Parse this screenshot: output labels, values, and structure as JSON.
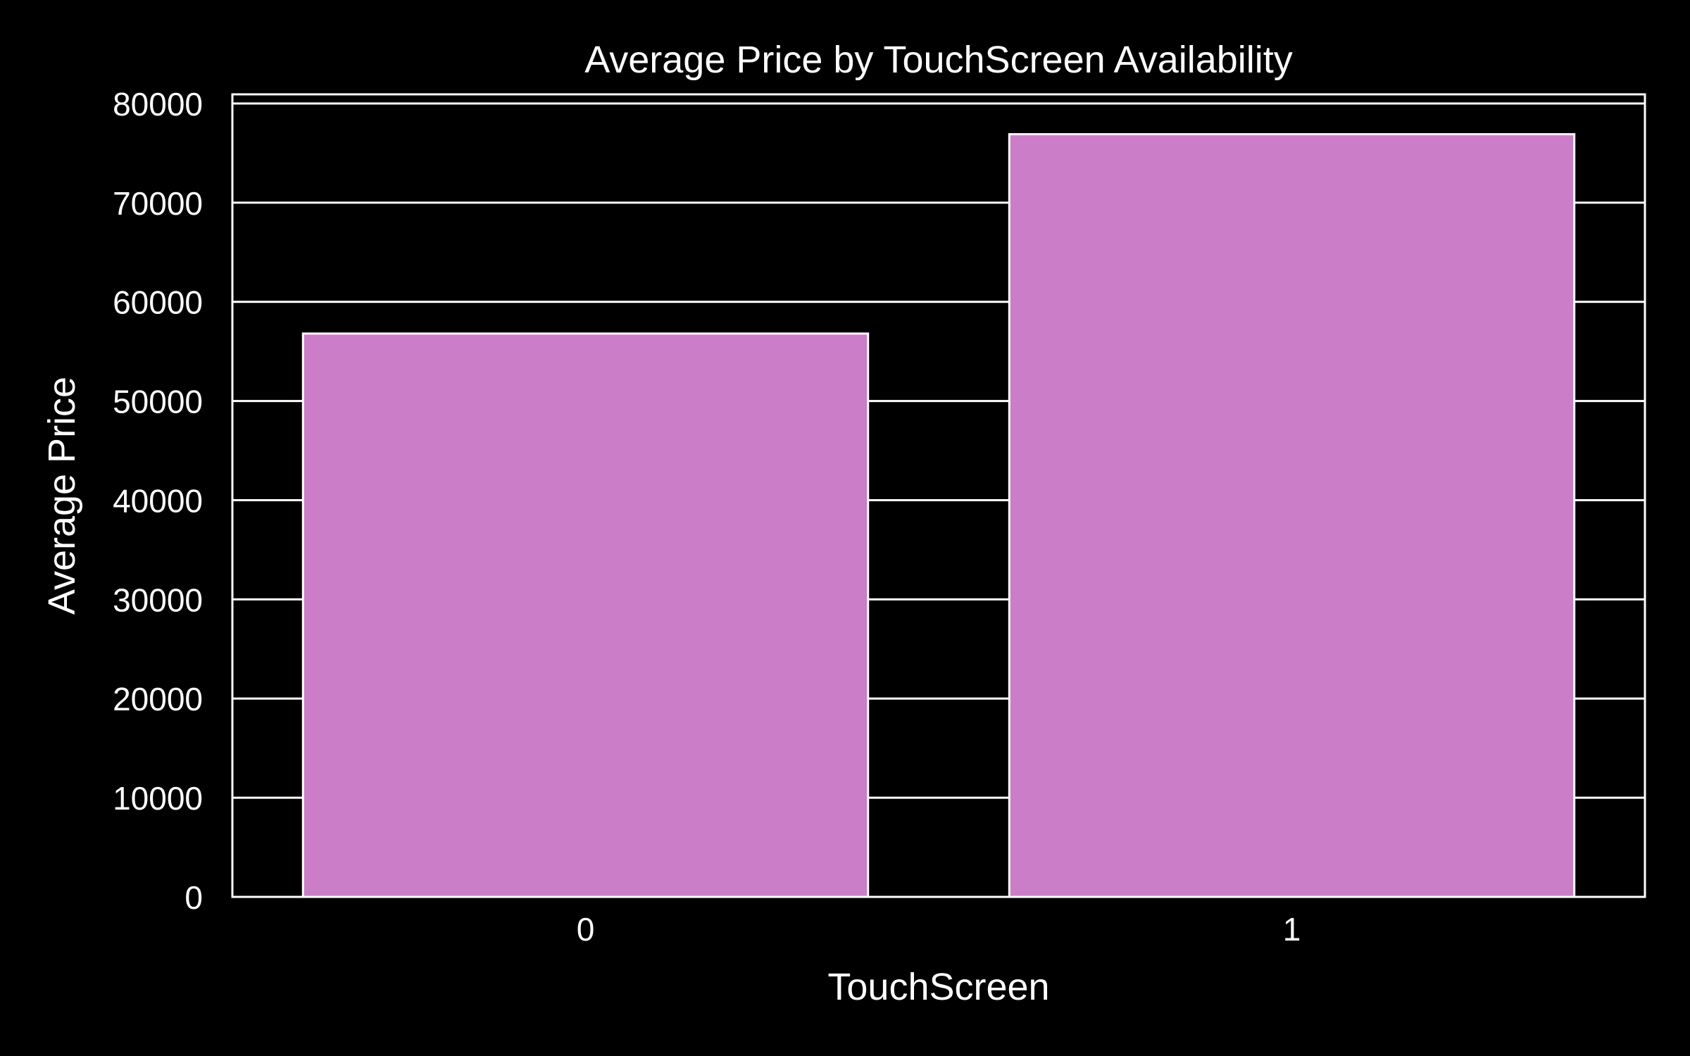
{
  "chart_data": {
    "type": "bar",
    "title": "Average Price by TouchScreen Availability",
    "xlabel": "TouchScreen",
    "ylabel": "Average Price",
    "categories": [
      "0",
      "1"
    ],
    "values": [
      56800,
      76900
    ],
    "ylim": [
      0,
      80000
    ],
    "yticks": [
      0,
      10000,
      20000,
      30000,
      40000,
      50000,
      60000,
      70000,
      80000
    ],
    "ytick_labels": [
      "0",
      "10000",
      "20000",
      "30000",
      "40000",
      "50000",
      "60000",
      "70000",
      "80000"
    ],
    "grid": "y",
    "legend": "none",
    "colors": {
      "background": "#000000",
      "bar_fill": "#cc7dc8",
      "bar_edge": "#ffffff",
      "grid": "#ffffff",
      "axes": "#ffffff",
      "text": "#ffffff"
    }
  }
}
